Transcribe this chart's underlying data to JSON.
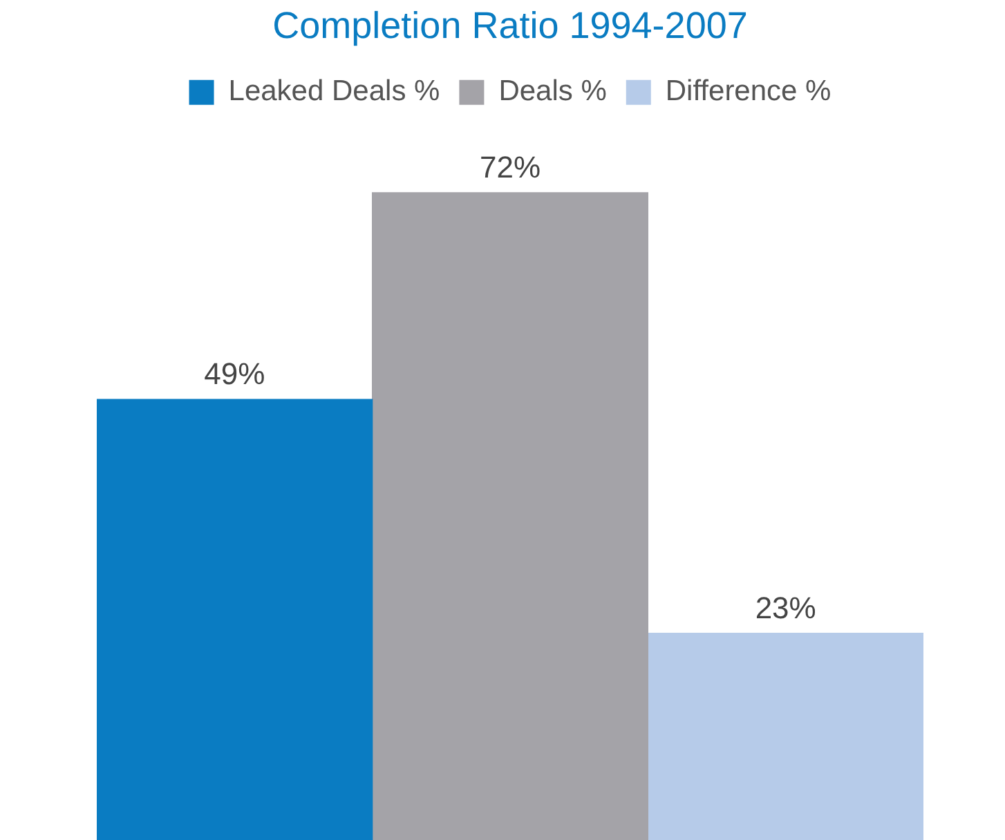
{
  "chart_data": {
    "type": "bar",
    "title": "Completion Ratio 1994-2007",
    "categories": [
      null
    ],
    "series": [
      {
        "name": "Leaked Deals %",
        "color": "#0a7cc2",
        "values": [
          49
        ],
        "value_labels": [
          "49%"
        ]
      },
      {
        "name": "Deals %",
        "color": "#a4a3a8",
        "values": [
          72
        ],
        "value_labels": [
          "72%"
        ]
      },
      {
        "name": "Difference %",
        "color": "#b6cbe9",
        "values": [
          23
        ],
        "value_labels": [
          "23%"
        ]
      }
    ],
    "legend": "top"
  }
}
